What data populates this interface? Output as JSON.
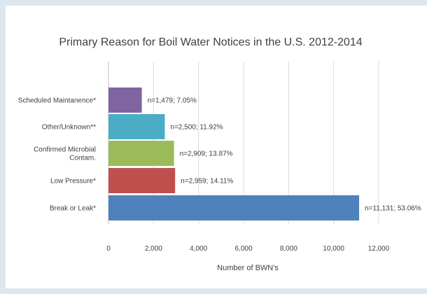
{
  "chart_data": {
    "type": "bar",
    "orientation": "horizontal",
    "title": "Primary Reason for Boil Water Notices in the U.S. 2012-2014",
    "xlabel": "Number of BWN's",
    "ylabel": "",
    "xlim": [
      0,
      12000
    ],
    "xticks": [
      0,
      2000,
      4000,
      6000,
      8000,
      10000,
      12000
    ],
    "xtick_labels": [
      "0",
      "2,000",
      "4,000",
      "6,000",
      "8,000",
      "10,000",
      "12,000"
    ],
    "grid": "vertical gridlines",
    "legend": "none",
    "categories": [
      [
        "Scheduled Maintanence*"
      ],
      [
        "Other/Unknown**"
      ],
      [
        "Confirmed Microbial",
        "Contam."
      ],
      [
        "Low Pressure*"
      ],
      [
        "Break or Leak*"
      ]
    ],
    "values": [
      1479,
      2500,
      2909,
      2959,
      11131
    ],
    "data_labels": [
      "n=1,479; 7.05%",
      "n=2,500; 11.92%",
      "n=2,909; 13.87%",
      "n=2,959; 14.11%",
      "n=11,131; 53.06%"
    ],
    "colors": [
      "#8064a2",
      "#4bacc6",
      "#9bbb59",
      "#c0504d",
      "#4f81bd"
    ]
  }
}
